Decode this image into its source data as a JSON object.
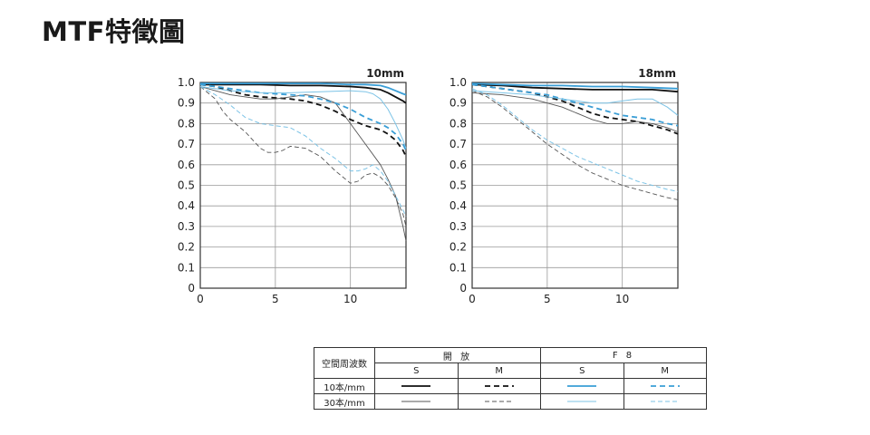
{
  "title": "MTF特徵圖",
  "chart_data": [
    {
      "type": "line",
      "title": "10mm",
      "xlim": [
        0,
        13.7
      ],
      "ylim": [
        0,
        1.0
      ],
      "x_ticks": [
        0,
        5,
        10
      ],
      "y_ticks": [
        0,
        0.1,
        0.2,
        0.3,
        0.4,
        0.5,
        0.6,
        0.7,
        0.8,
        0.9,
        1.0
      ],
      "y_tick_labels": [
        "0",
        "0.1",
        "0.2",
        "0.3",
        "0.4",
        "0.5",
        "0.6",
        "0.7",
        "0.8",
        "0.9",
        "1.0"
      ],
      "grid": true,
      "series": [
        {
          "key": "open_10_S",
          "color": "#111111",
          "width": 1.8,
          "dash": "",
          "x": [
            0,
            2,
            4,
            6,
            8,
            10,
            11,
            12,
            12.5,
            13,
            13.5,
            13.7
          ],
          "y": [
            0.99,
            0.99,
            0.99,
            0.985,
            0.985,
            0.98,
            0.975,
            0.965,
            0.95,
            0.93,
            0.91,
            0.9
          ]
        },
        {
          "key": "open_10_M",
          "color": "#111111",
          "width": 1.8,
          "dash": "6,4",
          "x": [
            0,
            1,
            2,
            3,
            4,
            5,
            6,
            7,
            8,
            9,
            10,
            11,
            12,
            12.5,
            13,
            13.5,
            13.7
          ],
          "y": [
            0.99,
            0.98,
            0.96,
            0.94,
            0.93,
            0.925,
            0.92,
            0.91,
            0.89,
            0.86,
            0.82,
            0.79,
            0.77,
            0.75,
            0.72,
            0.67,
            0.64
          ]
        },
        {
          "key": "open_30_S",
          "color": "#555555",
          "width": 0.9,
          "dash": "",
          "x": [
            0,
            1,
            2,
            3,
            4,
            5,
            6,
            7,
            8,
            9,
            10,
            11,
            12,
            12.5,
            13,
            13.5,
            13.7
          ],
          "y": [
            0.98,
            0.96,
            0.94,
            0.93,
            0.92,
            0.92,
            0.93,
            0.94,
            0.93,
            0.9,
            0.8,
            0.7,
            0.6,
            0.53,
            0.45,
            0.3,
            0.23
          ]
        },
        {
          "key": "open_30_M",
          "color": "#555555",
          "width": 0.9,
          "dash": "5,3",
          "x": [
            0,
            1,
            1.5,
            2,
            2.5,
            3,
            3.5,
            4,
            4.5,
            5,
            5.5,
            6,
            7,
            8,
            9,
            10,
            10.5,
            11,
            11.5,
            12,
            12.5,
            13,
            13.5,
            13.7
          ],
          "y": [
            0.98,
            0.92,
            0.86,
            0.82,
            0.79,
            0.76,
            0.72,
            0.68,
            0.66,
            0.66,
            0.67,
            0.69,
            0.68,
            0.64,
            0.57,
            0.51,
            0.52,
            0.55,
            0.56,
            0.54,
            0.5,
            0.44,
            0.36,
            0.3
          ]
        },
        {
          "key": "f8_10_S",
          "color": "#3a9ed6",
          "width": 1.8,
          "dash": "",
          "x": [
            0,
            2,
            4,
            6,
            8,
            10,
            11,
            12,
            12.5,
            13,
            13.5,
            13.7
          ],
          "y": [
            0.995,
            0.995,
            0.995,
            0.995,
            0.995,
            0.99,
            0.99,
            0.985,
            0.975,
            0.96,
            0.945,
            0.94
          ]
        },
        {
          "key": "f8_10_M",
          "color": "#3a9ed6",
          "width": 1.8,
          "dash": "6,4",
          "x": [
            0,
            1,
            2,
            3,
            4,
            5,
            6,
            7,
            8,
            9,
            10,
            11,
            12,
            12.5,
            13,
            13.5,
            13.7
          ],
          "y": [
            0.99,
            0.98,
            0.97,
            0.96,
            0.95,
            0.945,
            0.94,
            0.935,
            0.92,
            0.9,
            0.87,
            0.83,
            0.8,
            0.78,
            0.75,
            0.7,
            0.67
          ]
        },
        {
          "key": "f8_30_S",
          "color": "#7cc3e6",
          "width": 1.0,
          "dash": "",
          "x": [
            0,
            2,
            4,
            6,
            8,
            10,
            11,
            11.5,
            12,
            12.5,
            13,
            13.5,
            13.7
          ],
          "y": [
            0.98,
            0.96,
            0.95,
            0.95,
            0.955,
            0.96,
            0.955,
            0.945,
            0.92,
            0.87,
            0.8,
            0.72,
            0.68
          ]
        },
        {
          "key": "f8_30_M",
          "color": "#7cc3e6",
          "width": 1.0,
          "dash": "5,3",
          "x": [
            0,
            1,
            2,
            3,
            4,
            5,
            6,
            7,
            8,
            9,
            10,
            10.5,
            11,
            11.5,
            12,
            12.5,
            13,
            13.5,
            13.7
          ],
          "y": [
            0.98,
            0.94,
            0.89,
            0.83,
            0.8,
            0.79,
            0.78,
            0.74,
            0.68,
            0.63,
            0.57,
            0.57,
            0.58,
            0.6,
            0.57,
            0.52,
            0.45,
            0.38,
            0.35
          ]
        }
      ]
    },
    {
      "type": "line",
      "title": "18mm",
      "xlim": [
        0,
        13.7
      ],
      "ylim": [
        0,
        1.0
      ],
      "x_ticks": [
        0,
        5,
        10
      ],
      "y_ticks": [
        0,
        0.1,
        0.2,
        0.3,
        0.4,
        0.5,
        0.6,
        0.7,
        0.8,
        0.9,
        1.0
      ],
      "y_tick_labels": [
        "0",
        "0.1",
        "0.2",
        "0.3",
        "0.4",
        "0.5",
        "0.6",
        "0.7",
        "0.8",
        "0.9",
        "1.0"
      ],
      "grid": true,
      "series": [
        {
          "key": "open_10_S",
          "color": "#111111",
          "width": 1.8,
          "dash": "",
          "x": [
            0,
            2,
            4,
            6,
            8,
            10,
            12,
            13.7
          ],
          "y": [
            0.99,
            0.985,
            0.975,
            0.97,
            0.965,
            0.965,
            0.965,
            0.955
          ]
        },
        {
          "key": "open_10_M",
          "color": "#111111",
          "width": 1.8,
          "dash": "6,4",
          "x": [
            0,
            1,
            2,
            3,
            4,
            5,
            6,
            7,
            8,
            9,
            10,
            11,
            12,
            13,
            13.7
          ],
          "y": [
            0.99,
            0.98,
            0.97,
            0.96,
            0.95,
            0.93,
            0.91,
            0.88,
            0.85,
            0.83,
            0.82,
            0.81,
            0.79,
            0.77,
            0.75
          ]
        },
        {
          "key": "open_30_S",
          "color": "#555555",
          "width": 0.9,
          "dash": "",
          "x": [
            0,
            1,
            2,
            3,
            4,
            5,
            6,
            7,
            8,
            9,
            10,
            11,
            12,
            13,
            13.7
          ],
          "y": [
            0.95,
            0.945,
            0.94,
            0.93,
            0.92,
            0.9,
            0.88,
            0.85,
            0.82,
            0.8,
            0.8,
            0.81,
            0.8,
            0.78,
            0.76
          ]
        },
        {
          "key": "open_30_M",
          "color": "#555555",
          "width": 0.9,
          "dash": "5,3",
          "x": [
            0,
            1,
            2,
            3,
            4,
            5,
            6,
            7,
            8,
            9,
            10,
            11,
            12,
            13,
            13.7
          ],
          "y": [
            0.96,
            0.93,
            0.88,
            0.82,
            0.76,
            0.7,
            0.65,
            0.6,
            0.56,
            0.53,
            0.5,
            0.48,
            0.46,
            0.44,
            0.43
          ]
        },
        {
          "key": "f8_10_S",
          "color": "#3a9ed6",
          "width": 1.8,
          "dash": "",
          "x": [
            0,
            2,
            4,
            6,
            8,
            10,
            12,
            13.7
          ],
          "y": [
            0.995,
            0.99,
            0.985,
            0.985,
            0.98,
            0.98,
            0.975,
            0.97
          ]
        },
        {
          "key": "f8_10_M",
          "color": "#3a9ed6",
          "width": 1.8,
          "dash": "6,4",
          "x": [
            0,
            1,
            2,
            3,
            4,
            5,
            6,
            7,
            8,
            9,
            10,
            11,
            12,
            13,
            13.7
          ],
          "y": [
            0.99,
            0.98,
            0.97,
            0.96,
            0.95,
            0.94,
            0.92,
            0.9,
            0.88,
            0.86,
            0.84,
            0.83,
            0.82,
            0.8,
            0.79
          ]
        },
        {
          "key": "f8_30_S",
          "color": "#7cc3e6",
          "width": 1.0,
          "dash": "",
          "x": [
            0,
            2,
            4,
            6,
            8,
            9,
            10,
            11,
            12,
            13,
            13.7
          ],
          "y": [
            0.96,
            0.95,
            0.94,
            0.92,
            0.9,
            0.9,
            0.91,
            0.92,
            0.92,
            0.88,
            0.84
          ]
        },
        {
          "key": "f8_30_M",
          "color": "#7cc3e6",
          "width": 1.0,
          "dash": "5,3",
          "x": [
            0,
            1,
            2,
            3,
            4,
            5,
            6,
            7,
            8,
            9,
            10,
            11,
            12,
            13,
            13.7
          ],
          "y": [
            0.97,
            0.94,
            0.89,
            0.83,
            0.77,
            0.72,
            0.68,
            0.64,
            0.61,
            0.58,
            0.55,
            0.52,
            0.5,
            0.48,
            0.47
          ]
        }
      ]
    }
  ],
  "legend": {
    "header_label": "空間周波数",
    "groups": [
      {
        "label": "開 放",
        "sub": [
          "S",
          "M"
        ]
      },
      {
        "label": "F 8",
        "sub": [
          "S",
          "M"
        ]
      }
    ],
    "rows": [
      {
        "label": "10本/mm",
        "swatches": [
          {
            "color": "#111111",
            "width": 1.8,
            "dash": ""
          },
          {
            "color": "#111111",
            "width": 1.8,
            "dash": "6,4"
          },
          {
            "color": "#3a9ed6",
            "width": 1.8,
            "dash": ""
          },
          {
            "color": "#3a9ed6",
            "width": 1.8,
            "dash": "6,4"
          }
        ]
      },
      {
        "label": "30本/mm",
        "swatches": [
          {
            "color": "#555555",
            "width": 0.9,
            "dash": ""
          },
          {
            "color": "#555555",
            "width": 0.9,
            "dash": "5,3"
          },
          {
            "color": "#7cc3e6",
            "width": 1.0,
            "dash": ""
          },
          {
            "color": "#7cc3e6",
            "width": 1.0,
            "dash": "5,3"
          }
        ]
      }
    ]
  }
}
